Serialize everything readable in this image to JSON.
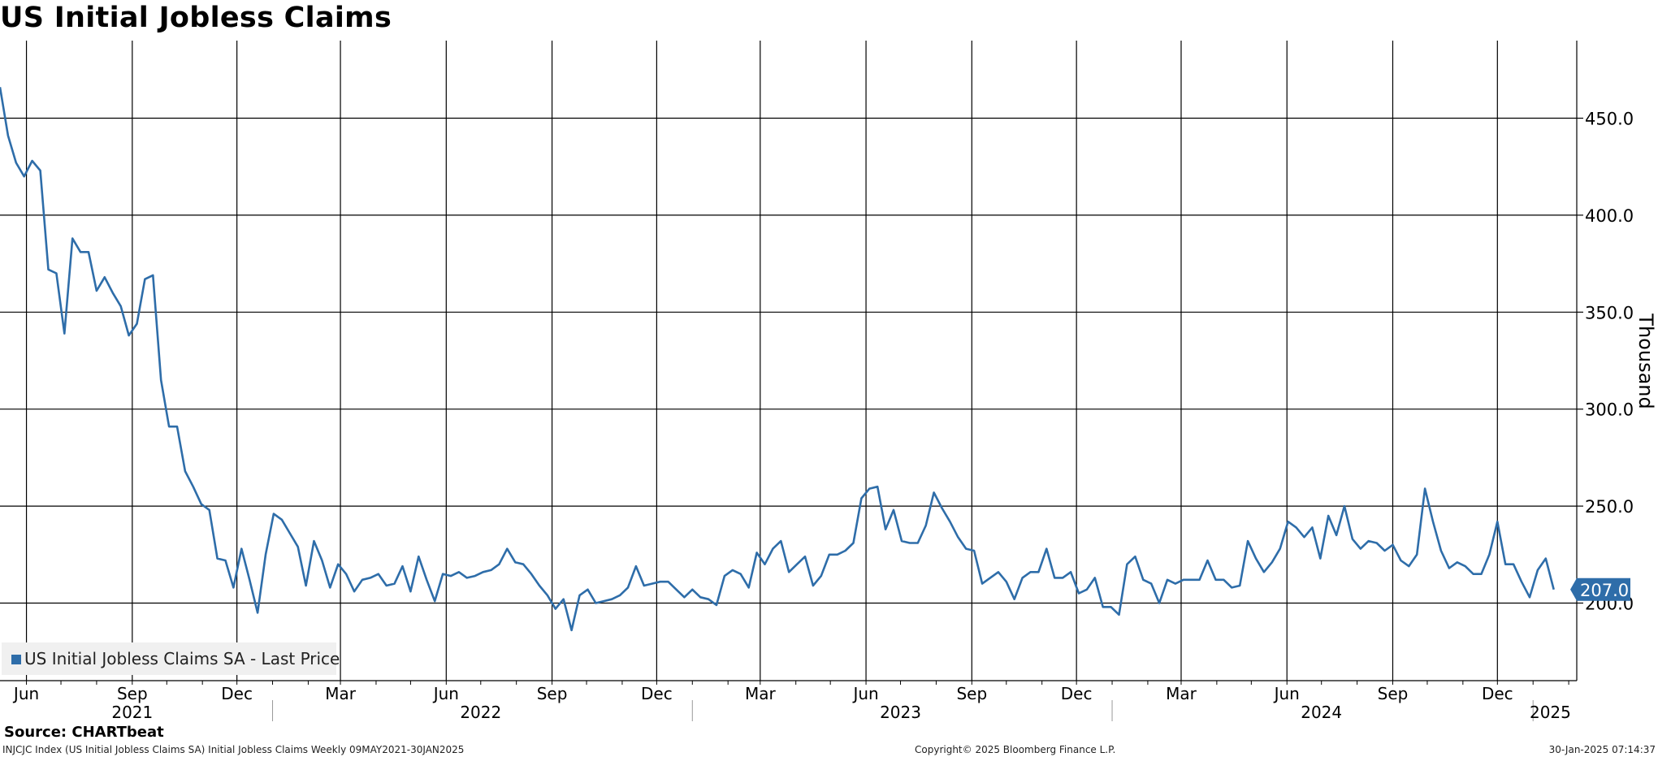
{
  "chart_data": {
    "type": "line",
    "title": "US Initial Jobless Claims",
    "ylabel": "Thousand",
    "ylim": [
      160,
      490
    ],
    "yticks": [
      200,
      250,
      300,
      350,
      400,
      450
    ],
    "ytick_labels": [
      "200.0",
      "250.0",
      "300.0",
      "350.0",
      "400.0",
      "450.0"
    ],
    "xlim": [
      "2021-05-09",
      "2025-02-08"
    ],
    "month_ticks": [
      {
        "label": "Jun",
        "date": "2021-06-01"
      },
      {
        "label": "Sep",
        "date": "2021-09-01"
      },
      {
        "label": "Dec",
        "date": "2021-12-01"
      },
      {
        "label": "Mar",
        "date": "2022-03-01"
      },
      {
        "label": "Jun",
        "date": "2022-06-01"
      },
      {
        "label": "Sep",
        "date": "2022-09-01"
      },
      {
        "label": "Dec",
        "date": "2022-12-01"
      },
      {
        "label": "Mar",
        "date": "2023-03-01"
      },
      {
        "label": "Jun",
        "date": "2023-06-01"
      },
      {
        "label": "Sep",
        "date": "2023-09-01"
      },
      {
        "label": "Dec",
        "date": "2023-12-01"
      },
      {
        "label": "Mar",
        "date": "2024-03-01"
      },
      {
        "label": "Jun",
        "date": "2024-06-01"
      },
      {
        "label": "Sep",
        "date": "2024-09-01"
      },
      {
        "label": "Dec",
        "date": "2024-12-01"
      }
    ],
    "year_labels": [
      {
        "label": "2021",
        "date": "2021-09-01"
      },
      {
        "label": "2022",
        "date": "2022-07-01"
      },
      {
        "label": "2023",
        "date": "2023-07-01"
      },
      {
        "label": "2024",
        "date": "2024-07-01"
      },
      {
        "label": "2025",
        "date": "2025-01-16"
      }
    ],
    "year_boundaries": [
      "2022-01-01",
      "2023-01-01",
      "2024-01-01",
      "2025-01-01"
    ],
    "grid": true,
    "legend_position": "bottom-left",
    "series": [
      {
        "name": "US Initial Jobless Claims SA - Last Price",
        "color": "#2e6da9",
        "start_date": "2021-05-09",
        "interval_days": 7,
        "values": [
          466,
          441,
          427,
          420,
          428,
          423,
          372,
          370,
          339,
          388,
          381,
          381,
          361,
          368,
          360,
          353,
          338,
          344,
          367,
          369,
          315,
          291,
          291,
          268,
          260,
          251,
          248,
          223,
          222,
          208,
          228,
          212,
          195,
          225,
          246,
          243,
          236,
          229,
          209,
          232,
          222,
          208,
          220,
          215,
          206,
          212,
          213,
          215,
          209,
          210,
          219,
          206,
          224,
          212,
          201,
          215,
          214,
          216,
          213,
          214,
          216,
          217,
          220,
          228,
          221,
          220,
          215,
          209,
          204,
          197,
          202,
          186,
          204,
          207,
          200,
          201,
          202,
          204,
          208,
          219,
          209,
          210,
          211,
          211,
          207,
          203,
          207,
          203,
          202,
          199,
          214,
          217,
          215,
          208,
          226,
          220,
          228,
          232,
          216,
          220,
          224,
          209,
          214,
          225,
          225,
          227,
          231,
          254,
          259,
          260,
          238,
          248,
          232,
          231,
          231,
          240,
          257,
          249,
          242,
          234,
          228,
          227,
          210,
          213,
          216,
          211,
          202,
          213,
          216,
          216,
          228,
          213,
          213,
          216,
          205,
          207,
          213,
          198,
          198,
          194,
          220,
          224,
          212,
          210,
          200,
          212,
          210,
          212,
          212,
          212,
          222,
          212,
          212,
          208,
          209,
          232,
          223,
          216,
          221,
          228,
          242,
          239,
          234,
          239,
          223,
          245,
          235,
          250,
          233,
          228,
          232,
          231,
          227,
          230,
          222,
          219,
          225,
          259,
          242,
          227,
          218,
          221,
          219,
          215,
          215,
          225,
          242,
          220,
          220,
          211,
          203,
          217,
          223,
          207
        ]
      }
    ],
    "last_value_label": "207.0"
  },
  "source": "Source: CHARTbeat",
  "footer": {
    "left": "INJCJC Index (US Initial Jobless Claims SA) Initial Jobless Claims  Weekly 09MAY2021-30JAN2025",
    "middle": "Copyright© 2025 Bloomberg Finance L.P.",
    "right": "30-Jan-2025 07:14:37"
  },
  "colors": {
    "line": "#2e6da9",
    "grid": "#000000",
    "legend_background": "#f0f0f0"
  }
}
